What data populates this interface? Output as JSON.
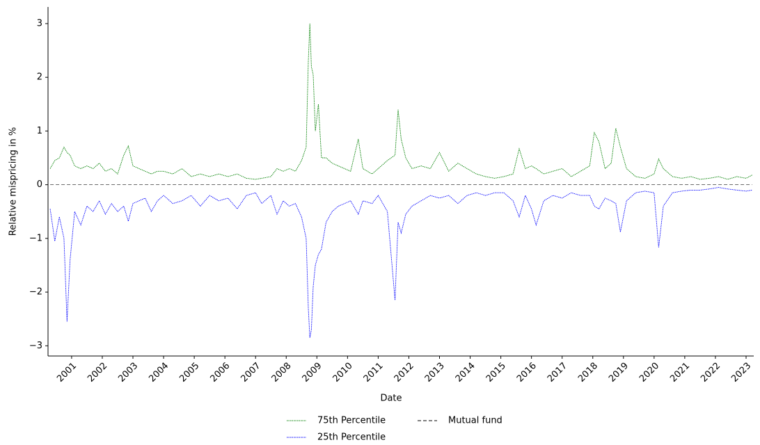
{
  "chart_data": {
    "type": "line",
    "xlabel": "Date",
    "ylabel": "Relative mispricing in %",
    "x": [
      2000.3,
      2000.45,
      2000.6,
      2000.75,
      2000.85,
      2000.95,
      2001.1,
      2001.3,
      2001.5,
      2001.7,
      2001.9,
      2002.1,
      2002.3,
      2002.5,
      2002.7,
      2002.85,
      2003.0,
      2003.2,
      2003.4,
      2003.6,
      2003.8,
      2004.0,
      2004.3,
      2004.6,
      2004.9,
      2005.2,
      2005.5,
      2005.8,
      2006.1,
      2006.4,
      2006.7,
      2007.0,
      2007.2,
      2007.5,
      2007.7,
      2007.9,
      2008.1,
      2008.3,
      2008.5,
      2008.65,
      2008.72,
      2008.77,
      2008.82,
      2008.88,
      2008.95,
      2009.05,
      2009.15,
      2009.3,
      2009.5,
      2009.7,
      2009.9,
      2010.1,
      2010.35,
      2010.5,
      2010.8,
      2011.0,
      2011.3,
      2011.55,
      2011.65,
      2011.75,
      2011.9,
      2012.1,
      2012.4,
      2012.7,
      2013.0,
      2013.3,
      2013.6,
      2013.9,
      2014.2,
      2014.5,
      2014.8,
      2015.1,
      2015.4,
      2015.6,
      2015.8,
      2016.0,
      2016.15,
      2016.4,
      2016.7,
      2017.0,
      2017.3,
      2017.6,
      2017.9,
      2018.05,
      2018.2,
      2018.4,
      2018.6,
      2018.75,
      2018.9,
      2019.1,
      2019.4,
      2019.7,
      2020.0,
      2020.15,
      2020.3,
      2020.6,
      2020.9,
      2021.2,
      2021.5,
      2021.8,
      2022.1,
      2022.4,
      2022.7,
      2023.0,
      2023.2
    ],
    "series": [
      {
        "name": "75th Percentile",
        "color": "#008000",
        "linestyle": "dotted",
        "values": [
          0.3,
          0.45,
          0.5,
          0.7,
          0.6,
          0.55,
          0.35,
          0.3,
          0.35,
          0.3,
          0.4,
          0.25,
          0.3,
          0.2,
          0.55,
          0.72,
          0.35,
          0.3,
          0.25,
          0.2,
          0.25,
          0.25,
          0.2,
          0.3,
          0.15,
          0.2,
          0.15,
          0.2,
          0.15,
          0.2,
          0.12,
          0.1,
          0.12,
          0.15,
          0.3,
          0.25,
          0.3,
          0.25,
          0.45,
          0.7,
          2.3,
          3.0,
          2.2,
          2.05,
          1.0,
          1.5,
          0.5,
          0.5,
          0.4,
          0.35,
          0.3,
          0.25,
          0.85,
          0.3,
          0.2,
          0.3,
          0.45,
          0.55,
          1.4,
          0.85,
          0.5,
          0.3,
          0.35,
          0.3,
          0.6,
          0.25,
          0.4,
          0.3,
          0.2,
          0.15,
          0.12,
          0.15,
          0.2,
          0.67,
          0.3,
          0.35,
          0.3,
          0.2,
          0.25,
          0.3,
          0.15,
          0.25,
          0.35,
          0.97,
          0.8,
          0.3,
          0.4,
          1.05,
          0.7,
          0.3,
          0.15,
          0.12,
          0.2,
          0.48,
          0.3,
          0.15,
          0.12,
          0.15,
          0.1,
          0.12,
          0.15,
          0.1,
          0.15,
          0.12,
          0.18
        ]
      },
      {
        "name": "25th Percentile",
        "color": "#0000ff",
        "linestyle": "dotted",
        "values": [
          -0.45,
          -1.05,
          -0.6,
          -1.0,
          -2.55,
          -1.4,
          -0.5,
          -0.75,
          -0.4,
          -0.5,
          -0.3,
          -0.55,
          -0.35,
          -0.5,
          -0.4,
          -0.68,
          -0.35,
          -0.3,
          -0.25,
          -0.5,
          -0.3,
          -0.2,
          -0.35,
          -0.3,
          -0.2,
          -0.4,
          -0.2,
          -0.3,
          -0.25,
          -0.45,
          -0.2,
          -0.15,
          -0.35,
          -0.2,
          -0.55,
          -0.3,
          -0.4,
          -0.35,
          -0.6,
          -1.0,
          -2.3,
          -2.85,
          -2.7,
          -1.9,
          -1.5,
          -1.3,
          -1.2,
          -0.7,
          -0.5,
          -0.4,
          -0.35,
          -0.3,
          -0.55,
          -0.3,
          -0.35,
          -0.2,
          -0.5,
          -2.15,
          -0.7,
          -0.9,
          -0.55,
          -0.4,
          -0.3,
          -0.2,
          -0.25,
          -0.2,
          -0.35,
          -0.2,
          -0.15,
          -0.2,
          -0.15,
          -0.15,
          -0.3,
          -0.6,
          -0.2,
          -0.45,
          -0.75,
          -0.3,
          -0.2,
          -0.25,
          -0.15,
          -0.2,
          -0.2,
          -0.4,
          -0.45,
          -0.25,
          -0.3,
          -0.35,
          -0.88,
          -0.3,
          -0.15,
          -0.12,
          -0.15,
          -1.17,
          -0.4,
          -0.15,
          -0.12,
          -0.1,
          -0.1,
          -0.08,
          -0.05,
          -0.08,
          -0.1,
          -0.12,
          -0.1
        ]
      },
      {
        "name": "Mutual fund",
        "color": "#555555",
        "linestyle": "dashed",
        "values": [
          0,
          0,
          0,
          0,
          0,
          0,
          0,
          0,
          0,
          0,
          0,
          0,
          0,
          0,
          0,
          0,
          0,
          0,
          0,
          0,
          0,
          0,
          0,
          0,
          0,
          0,
          0,
          0,
          0,
          0,
          0,
          0,
          0,
          0,
          0,
          0,
          0,
          0,
          0,
          0,
          0,
          0,
          0,
          0,
          0,
          0,
          0,
          0,
          0,
          0,
          0,
          0,
          0,
          0,
          0,
          0,
          0,
          0,
          0,
          0,
          0,
          0,
          0,
          0,
          0,
          0,
          0,
          0,
          0,
          0,
          0,
          0,
          0,
          0,
          0,
          0,
          0,
          0,
          0,
          0,
          0,
          0,
          0,
          0,
          0,
          0,
          0,
          0,
          0,
          0,
          0,
          0,
          0,
          0,
          0,
          0,
          0,
          0,
          0,
          0,
          0,
          0,
          0,
          0,
          0
        ]
      }
    ],
    "xlim": [
      2000.23,
      2023.25
    ],
    "xticks": [
      2001,
      2002,
      2003,
      2004,
      2005,
      2006,
      2007,
      2008,
      2009,
      2010,
      2011,
      2012,
      2013,
      2014,
      2015,
      2016,
      2017,
      2018,
      2019,
      2020,
      2021,
      2022,
      2023
    ],
    "ylim": [
      -3.19,
      3.31
    ],
    "yticks": [
      {
        "value": -3,
        "label": "−3"
      },
      {
        "value": -2,
        "label": "−2"
      },
      {
        "value": -1,
        "label": "−1"
      },
      0,
      1,
      2,
      3
    ],
    "legend": "lower center"
  }
}
